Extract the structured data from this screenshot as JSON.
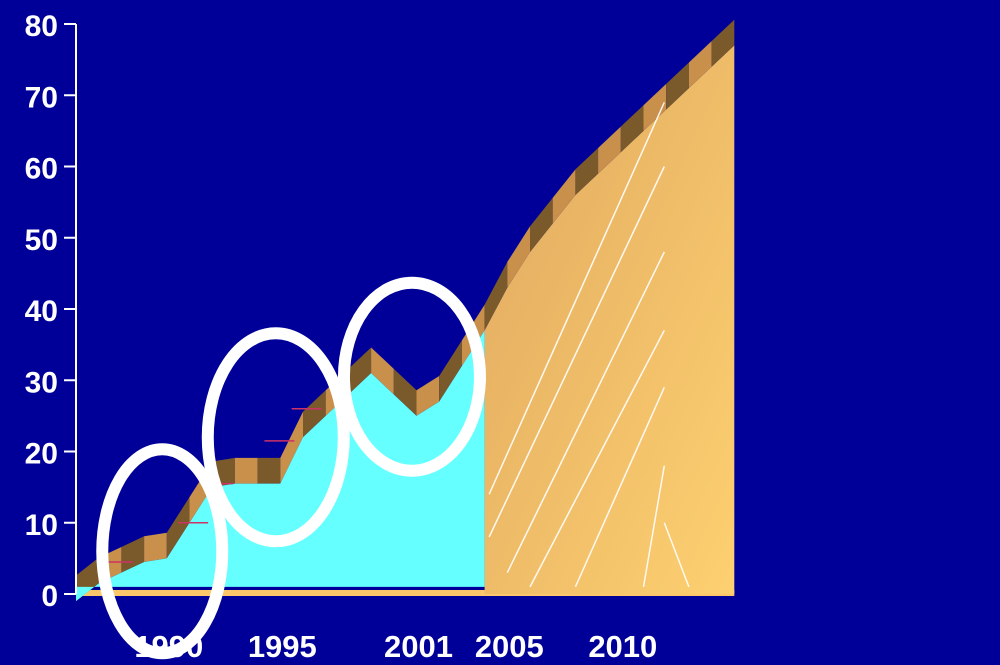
{
  "colors": {
    "background": "#000099",
    "historic_fill": "#66ffff",
    "projection_fill": "#fbc76a",
    "ridge_dark": "#7a5a2a",
    "ridge_light": "#c8904a",
    "circle": "#ffffff",
    "tick_marks": "#cc3366"
  },
  "chart_data": {
    "type": "area",
    "title": "",
    "xlabel": "",
    "ylabel": "",
    "ylim": [
      0,
      80
    ],
    "xlim": [
      1986,
      2015
    ],
    "y_ticks": [
      "0",
      "10",
      "20",
      "30",
      "40",
      "50",
      "60",
      "70",
      "80"
    ],
    "x_ticks": [
      {
        "year": 1990,
        "label": "1990"
      },
      {
        "year": 1995,
        "label": "1995"
      },
      {
        "year": 2001,
        "label": "2001"
      },
      {
        "year": 2005,
        "label": "2005"
      },
      {
        "year": 2010,
        "label": "2010"
      }
    ],
    "series": [
      {
        "x": [
          1986,
          1987,
          1988,
          1989,
          1990,
          1991,
          1992,
          1993,
          1994,
          1995,
          1996,
          1997,
          1998,
          1999,
          2000,
          2001,
          2002,
          2003,
          2004
        ],
        "y": [
          2,
          4.5,
          6,
          7.5,
          8,
          13,
          18,
          18.5,
          18.5,
          18.5,
          25,
          28,
          31,
          34,
          31,
          28,
          30,
          35,
          40
        ]
      },
      {
        "x": [
          2004,
          2005,
          2006,
          2007,
          2008,
          2009,
          2010,
          2011,
          2012,
          2013,
          2014,
          2015
        ],
        "y": [
          40,
          46,
          51,
          55,
          59,
          62,
          65,
          68,
          71,
          74,
          77,
          80
        ]
      }
    ],
    "grid": false,
    "legend": "none",
    "annotations": [
      {
        "shape": "ellipse",
        "center": [
          1989.8,
          6
        ]
      },
      {
        "shape": "ellipse",
        "center": [
          1994.8,
          22
        ]
      },
      {
        "shape": "ellipse",
        "center": [
          2000.8,
          30.5
        ]
      }
    ]
  }
}
